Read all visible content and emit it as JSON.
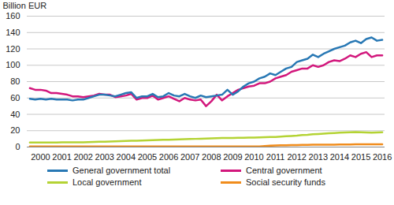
{
  "chart_data": {
    "type": "line",
    "y_label": "Billion EUR",
    "categories": [
      null,
      null,
      "2000",
      null,
      null,
      null,
      "2001",
      null,
      null,
      null,
      "2002",
      null,
      null,
      null,
      "2003",
      null,
      null,
      null,
      "2004",
      null,
      null,
      null,
      "2005",
      null,
      null,
      null,
      "2006",
      null,
      null,
      null,
      "2007",
      null,
      null,
      null,
      "2008",
      null,
      null,
      null,
      "2009",
      null,
      null,
      null,
      "2010",
      null,
      null,
      null,
      "2011",
      null,
      null,
      null,
      "2012",
      null,
      null,
      null,
      "2013",
      null,
      null,
      null,
      "2014",
      null,
      null,
      null,
      "2015",
      null,
      null,
      null,
      "2016"
    ],
    "series": [
      {
        "name": "General government total",
        "color": "#2878b4",
        "values": [
          59,
          58,
          59,
          58,
          59,
          58,
          58,
          58,
          57,
          58,
          58,
          60,
          62,
          64,
          64,
          63,
          62,
          64,
          66,
          67,
          60,
          62,
          62,
          65,
          61,
          62,
          66,
          63,
          62,
          65,
          62,
          60,
          63,
          61,
          62,
          63,
          64,
          70,
          64,
          68,
          74,
          78,
          80,
          84,
          86,
          90,
          88,
          92,
          96,
          98,
          104,
          106,
          108,
          113,
          110,
          114,
          117,
          120,
          122,
          124,
          128,
          130,
          127,
          132,
          134,
          130,
          131
        ]
      },
      {
        "name": "Central government",
        "color": "#d2177c",
        "values": [
          72,
          70,
          70,
          69,
          66,
          66,
          65,
          64,
          62,
          62,
          61,
          62,
          63,
          65,
          64,
          64,
          61,
          62,
          63,
          65,
          58,
          60,
          60,
          63,
          58,
          60,
          62,
          59,
          56,
          60,
          58,
          57,
          58,
          50,
          56,
          64,
          57,
          62,
          66,
          70,
          72,
          74,
          75,
          78,
          78,
          80,
          84,
          86,
          88,
          92,
          94,
          96,
          96,
          100,
          98,
          100,
          104,
          106,
          105,
          108,
          112,
          110,
          114,
          116,
          110,
          112,
          112
        ]
      },
      {
        "name": "Local government",
        "color": "#b4d334",
        "values": [
          5.5,
          5.5,
          5.5,
          5.6,
          5.6,
          5.6,
          5.7,
          5.7,
          5.7,
          5.8,
          5.8,
          6.0,
          6.2,
          6.4,
          6.6,
          6.8,
          7.0,
          7.2,
          7.4,
          7.6,
          7.8,
          8.0,
          8.2,
          8.4,
          8.6,
          8.8,
          9.0,
          9.2,
          9.4,
          9.6,
          9.8,
          10.0,
          10.2,
          10.4,
          10.6,
          10.8,
          11.0,
          11.2,
          11.2,
          11.4,
          11.4,
          11.6,
          11.6,
          11.8,
          12.0,
          12.2,
          12.4,
          12.8,
          13.2,
          13.6,
          14.0,
          14.6,
          15.0,
          15.6,
          16.0,
          16.4,
          16.8,
          17.2,
          17.6,
          17.8,
          18.0,
          18.2,
          18.0,
          17.8,
          17.6,
          17.8,
          18.0
        ]
      },
      {
        "name": "Social security funds",
        "color": "#f08c1c",
        "values": [
          0.8,
          0.8,
          0.8,
          0.8,
          0.8,
          0.8,
          0.8,
          0.8,
          0.8,
          0.8,
          0.8,
          0.8,
          0.8,
          0.8,
          0.8,
          0.8,
          0.8,
          0.8,
          0.8,
          0.8,
          0.8,
          0.8,
          0.8,
          0.8,
          0.8,
          0.8,
          0.8,
          0.8,
          0.8,
          0.8,
          0.8,
          0.8,
          0.8,
          0.8,
          0.8,
          0.8,
          0.8,
          0.8,
          0.8,
          0.8,
          0.8,
          0.8,
          0.8,
          0.8,
          1.2,
          1.6,
          2.0,
          2.2,
          2.2,
          2.4,
          2.4,
          2.6,
          2.6,
          2.8,
          2.8,
          3.0,
          3.0,
          3.0,
          3.2,
          3.2,
          3.2,
          3.4,
          3.4,
          3.4,
          3.4,
          3.4,
          3.4
        ]
      }
    ],
    "ylim": [
      0,
      160
    ],
    "yticks": [
      0,
      20,
      40,
      60,
      80,
      100,
      120,
      140,
      160
    ],
    "grid": true,
    "legend": "bottom"
  }
}
